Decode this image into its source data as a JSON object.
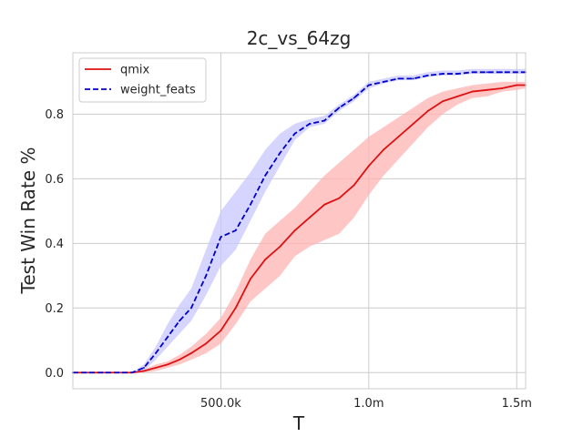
{
  "chart_data": {
    "type": "line",
    "title": "2c_vs_64zg",
    "xlabel": "T",
    "ylabel": "Test Win Rate %",
    "xlim": [
      0,
      1530000
    ],
    "ylim": [
      -0.05,
      0.99
    ],
    "grid": true,
    "legend_position": "top-left",
    "x_ticks": [
      {
        "value": 500000,
        "label": "500.0k"
      },
      {
        "value": 1000000,
        "label": "1.0m"
      },
      {
        "value": 1500000,
        "label": "1.5m"
      }
    ],
    "y_ticks": [
      {
        "value": 0.0,
        "label": "0.0"
      },
      {
        "value": 0.2,
        "label": "0.2"
      },
      {
        "value": 0.4,
        "label": "0.4"
      },
      {
        "value": 0.6,
        "label": "0.6"
      },
      {
        "value": 0.8,
        "label": "0.8"
      }
    ],
    "x": [
      0,
      100000,
      200000,
      240000,
      280000,
      320000,
      360000,
      400000,
      450000,
      500000,
      550000,
      600000,
      650000,
      700000,
      750000,
      800000,
      850000,
      900000,
      950000,
      1000000,
      1050000,
      1100000,
      1150000,
      1200000,
      1250000,
      1300000,
      1350000,
      1400000,
      1450000,
      1500000,
      1530000
    ],
    "series": [
      {
        "name": "qmix",
        "color": "#dd1111",
        "line_style": "solid",
        "band_color": "#ffb3b3",
        "values": [
          0.0,
          0.0,
          0.0,
          0.005,
          0.015,
          0.025,
          0.04,
          0.06,
          0.09,
          0.13,
          0.2,
          0.29,
          0.35,
          0.39,
          0.44,
          0.48,
          0.52,
          0.54,
          0.58,
          0.64,
          0.69,
          0.73,
          0.77,
          0.81,
          0.84,
          0.855,
          0.87,
          0.875,
          0.88,
          0.89,
          0.89
        ],
        "lower": [
          0.0,
          0.0,
          0.0,
          0.0,
          0.005,
          0.015,
          0.025,
          0.04,
          0.06,
          0.09,
          0.15,
          0.22,
          0.26,
          0.3,
          0.36,
          0.39,
          0.41,
          0.43,
          0.48,
          0.55,
          0.61,
          0.66,
          0.71,
          0.76,
          0.8,
          0.83,
          0.85,
          0.855,
          0.87,
          0.875,
          0.88
        ],
        "upper": [
          0.0,
          0.0,
          0.0,
          0.01,
          0.025,
          0.035,
          0.055,
          0.08,
          0.12,
          0.17,
          0.25,
          0.35,
          0.43,
          0.47,
          0.51,
          0.56,
          0.61,
          0.65,
          0.69,
          0.73,
          0.76,
          0.79,
          0.82,
          0.85,
          0.87,
          0.88,
          0.89,
          0.895,
          0.9,
          0.9,
          0.9
        ]
      },
      {
        "name": "weight_feats",
        "color": "#0000cc",
        "line_style": "dashed",
        "band_color": "#c7c7ff",
        "values": [
          0.0,
          0.0,
          0.0,
          0.015,
          0.06,
          0.11,
          0.16,
          0.2,
          0.3,
          0.42,
          0.44,
          0.52,
          0.61,
          0.68,
          0.74,
          0.77,
          0.78,
          0.82,
          0.85,
          0.89,
          0.9,
          0.91,
          0.91,
          0.92,
          0.925,
          0.925,
          0.93,
          0.93,
          0.93,
          0.93,
          0.93
        ],
        "lower": [
          0.0,
          0.0,
          0.0,
          0.005,
          0.04,
          0.08,
          0.12,
          0.16,
          0.24,
          0.33,
          0.38,
          0.47,
          0.56,
          0.64,
          0.72,
          0.76,
          0.77,
          0.81,
          0.84,
          0.88,
          0.895,
          0.905,
          0.905,
          0.915,
          0.92,
          0.92,
          0.925,
          0.925,
          0.925,
          0.925,
          0.925
        ],
        "upper": [
          0.0,
          0.0,
          0.0,
          0.025,
          0.08,
          0.15,
          0.21,
          0.26,
          0.38,
          0.5,
          0.56,
          0.62,
          0.69,
          0.74,
          0.77,
          0.785,
          0.795,
          0.83,
          0.86,
          0.9,
          0.91,
          0.92,
          0.92,
          0.93,
          0.935,
          0.935,
          0.94,
          0.94,
          0.94,
          0.94,
          0.94
        ]
      }
    ]
  }
}
